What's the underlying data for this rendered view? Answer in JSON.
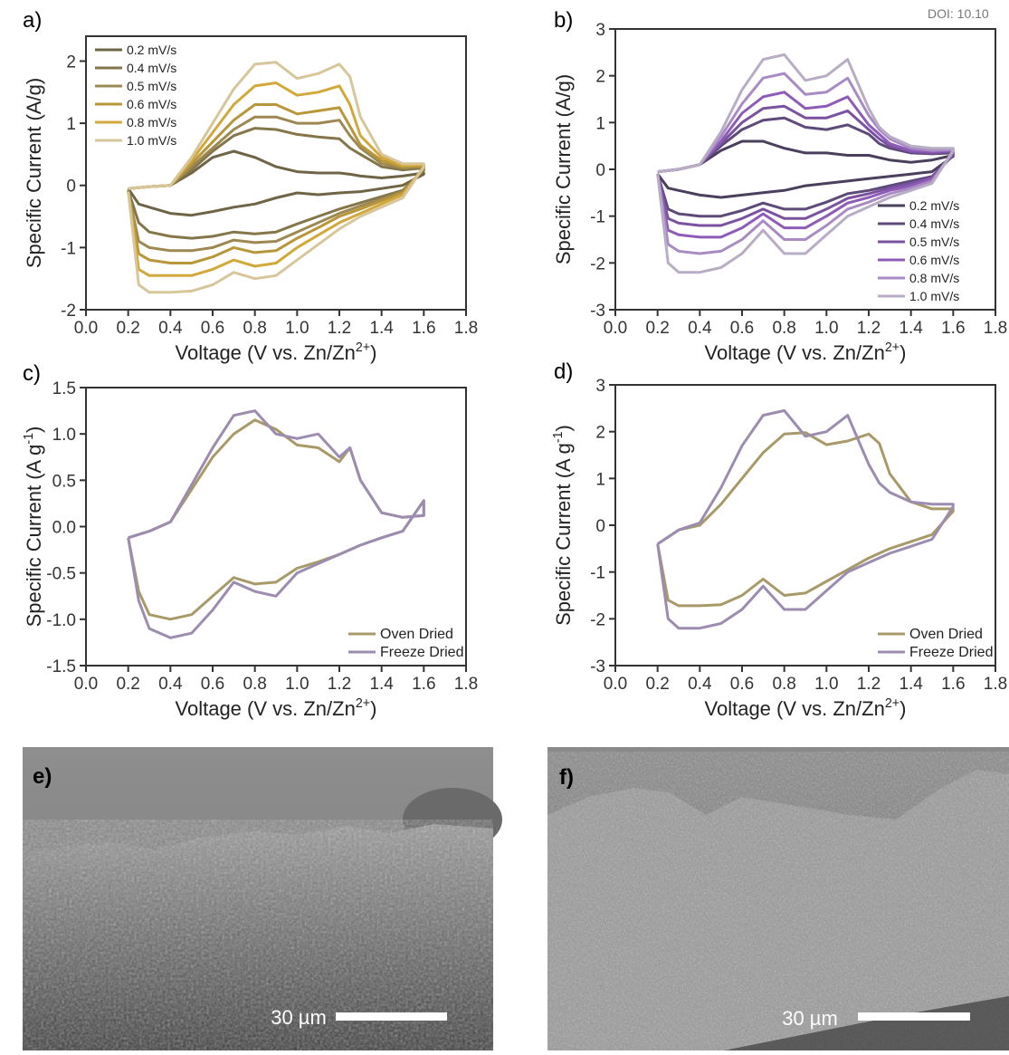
{
  "doi": "DOI: 10.10",
  "chart_data": [
    {
      "type": "line",
      "panel": "a)",
      "ylabel": {
        "text": "Specific Current (A/g)"
      },
      "xlabel": {
        "text": "Voltage (V vs. Zn/Zn",
        "sup": "2+",
        "end": ")"
      },
      "xlim": [
        0,
        1.8
      ],
      "xticks": [
        {
          "value": 0,
          "label": "0.0"
        },
        0.2,
        0.4,
        0.6,
        0.8,
        {
          "value": 1,
          "label": "1.0"
        },
        1.2,
        1.4,
        1.6,
        1.8
      ],
      "ylim": [
        -2,
        2.4
      ],
      "yticks": [
        -2,
        -1,
        0,
        1,
        2
      ],
      "legend": "upper left",
      "x": [
        0.2,
        0.3,
        0.4,
        0.5,
        0.6,
        0.7,
        0.8,
        0.9,
        1.0,
        1.1,
        1.2,
        1.25,
        1.3,
        1.4,
        1.5,
        1.6,
        1.6,
        1.5,
        1.4,
        1.3,
        1.2,
        1.1,
        1.0,
        0.9,
        0.8,
        0.7,
        0.6,
        0.5,
        0.4,
        0.3,
        0.25,
        0.2
      ],
      "series": [
        {
          "name": "0.2 mV/s",
          "color": "#6f6445",
          "values": [
            -0.05,
            -0.02,
            0.0,
            0.2,
            0.45,
            0.55,
            0.45,
            0.3,
            0.22,
            0.2,
            0.2,
            0.18,
            0.15,
            0.12,
            0.15,
            0.2,
            0.18,
            0.0,
            -0.05,
            -0.1,
            -0.12,
            -0.15,
            -0.12,
            -0.2,
            -0.3,
            -0.35,
            -0.42,
            -0.48,
            -0.45,
            -0.35,
            -0.3,
            -0.05
          ]
        },
        {
          "name": "0.4 mV/s",
          "color": "#85764a",
          "values": [
            -0.05,
            -0.02,
            0.0,
            0.25,
            0.55,
            0.8,
            0.92,
            0.9,
            0.82,
            0.78,
            0.75,
            0.6,
            0.5,
            0.3,
            0.25,
            0.28,
            0.24,
            -0.08,
            -0.18,
            -0.28,
            -0.38,
            -0.5,
            -0.62,
            -0.75,
            -0.78,
            -0.75,
            -0.82,
            -0.85,
            -0.82,
            -0.75,
            -0.6,
            -0.08
          ]
        },
        {
          "name": "0.5 mV/s",
          "color": "#9c8850",
          "values": [
            -0.05,
            -0.02,
            0.0,
            0.3,
            0.6,
            0.9,
            1.1,
            1.1,
            1.0,
            1.0,
            1.05,
            0.8,
            0.6,
            0.35,
            0.28,
            0.3,
            0.26,
            -0.1,
            -0.22,
            -0.33,
            -0.45,
            -0.6,
            -0.75,
            -0.9,
            -0.92,
            -0.88,
            -1.0,
            -1.05,
            -1.05,
            -1.0,
            -0.9,
            -0.1
          ]
        },
        {
          "name": "0.6 mV/s",
          "color": "#b8963a",
          "values": [
            -0.05,
            -0.02,
            0.0,
            0.35,
            0.7,
            1.05,
            1.3,
            1.3,
            1.15,
            1.2,
            1.25,
            0.95,
            0.65,
            0.4,
            0.3,
            0.32,
            0.28,
            -0.12,
            -0.25,
            -0.38,
            -0.5,
            -0.68,
            -0.85,
            -1.05,
            -1.08,
            -1.0,
            -1.15,
            -1.25,
            -1.25,
            -1.2,
            -1.1,
            -0.1
          ]
        },
        {
          "name": "0.8 mV/s",
          "color": "#d2a83a",
          "values": [
            -0.05,
            -0.02,
            0.0,
            0.4,
            0.85,
            1.3,
            1.6,
            1.65,
            1.45,
            1.5,
            1.6,
            1.3,
            0.8,
            0.45,
            0.32,
            0.33,
            0.3,
            -0.15,
            -0.3,
            -0.45,
            -0.6,
            -0.8,
            -1.0,
            -1.25,
            -1.3,
            -1.2,
            -1.35,
            -1.45,
            -1.45,
            -1.45,
            -1.35,
            -0.1
          ]
        },
        {
          "name": "1.0 mV/s",
          "color": "#d6c69a",
          "values": [
            -0.05,
            -0.02,
            0.0,
            0.45,
            1.0,
            1.55,
            1.95,
            1.98,
            1.72,
            1.8,
            1.95,
            1.75,
            1.1,
            0.5,
            0.35,
            0.35,
            0.3,
            -0.2,
            -0.35,
            -0.5,
            -0.7,
            -0.95,
            -1.2,
            -1.45,
            -1.5,
            -1.4,
            -1.6,
            -1.7,
            -1.72,
            -1.72,
            -1.6,
            -0.1
          ]
        }
      ]
    },
    {
      "type": "line",
      "panel": "b)",
      "ylabel": {
        "text": "Specific Current (A/g)"
      },
      "xlabel": {
        "text": "Voltage (V vs. Zn/Zn",
        "sup": "2+",
        "end": ")"
      },
      "xlim": [
        0,
        1.8
      ],
      "xticks": [
        {
          "value": 0,
          "label": "0.0"
        },
        0.2,
        0.4,
        0.6,
        0.8,
        {
          "value": 1,
          "label": "1.0"
        },
        1.2,
        1.4,
        1.6,
        1.8
      ],
      "ylim": [
        -3,
        3
      ],
      "yticks": [
        -3,
        -2,
        -1,
        0,
        1,
        2,
        3
      ],
      "legend": "lower right",
      "x": [
        0.2,
        0.3,
        0.4,
        0.5,
        0.6,
        0.7,
        0.8,
        0.9,
        1.0,
        1.1,
        1.2,
        1.25,
        1.3,
        1.4,
        1.5,
        1.6,
        1.6,
        1.5,
        1.4,
        1.3,
        1.2,
        1.1,
        1.0,
        0.9,
        0.8,
        0.7,
        0.6,
        0.5,
        0.4,
        0.3,
        0.25,
        0.2
      ],
      "series": [
        {
          "name": "0.2 mV/s",
          "color": "#4a3f5c",
          "values": [
            -0.05,
            0.0,
            0.1,
            0.4,
            0.6,
            0.6,
            0.45,
            0.35,
            0.35,
            0.3,
            0.3,
            0.25,
            0.2,
            0.15,
            0.2,
            0.3,
            0.28,
            -0.05,
            -0.1,
            -0.15,
            -0.2,
            -0.25,
            -0.3,
            -0.35,
            -0.45,
            -0.5,
            -0.55,
            -0.6,
            -0.55,
            -0.45,
            -0.4,
            -0.1
          ]
        },
        {
          "name": "0.4 mV/s",
          "color": "#5e4a7a",
          "values": [
            -0.05,
            0.0,
            0.1,
            0.5,
            0.85,
            1.05,
            1.1,
            0.9,
            0.85,
            0.95,
            0.75,
            0.55,
            0.45,
            0.35,
            0.33,
            0.35,
            0.3,
            -0.15,
            -0.25,
            -0.35,
            -0.45,
            -0.52,
            -0.7,
            -0.85,
            -0.85,
            -0.72,
            -0.88,
            -1.0,
            -1.0,
            -0.95,
            -0.85,
            -0.1
          ]
        },
        {
          "name": "0.5 mV/s",
          "color": "#7a52a0",
          "values": [
            -0.05,
            0.0,
            0.1,
            0.55,
            1.0,
            1.3,
            1.35,
            1.1,
            1.1,
            1.25,
            0.85,
            0.65,
            0.5,
            0.38,
            0.35,
            0.38,
            0.32,
            -0.18,
            -0.3,
            -0.4,
            -0.52,
            -0.62,
            -0.85,
            -1.05,
            -1.05,
            -0.85,
            -1.05,
            -1.2,
            -1.2,
            -1.15,
            -1.05,
            -0.1
          ]
        },
        {
          "name": "0.6 mV/s",
          "color": "#8f5bb8",
          "values": [
            -0.05,
            0.0,
            0.1,
            0.6,
            1.2,
            1.55,
            1.65,
            1.3,
            1.35,
            1.55,
            0.95,
            0.75,
            0.55,
            0.4,
            0.38,
            0.4,
            0.35,
            -0.2,
            -0.35,
            -0.45,
            -0.6,
            -0.72,
            -1.0,
            -1.25,
            -1.25,
            -0.95,
            -1.25,
            -1.45,
            -1.45,
            -1.4,
            -1.3,
            -0.1
          ]
        },
        {
          "name": "0.8 mV/s",
          "color": "#a98bc4",
          "values": [
            -0.05,
            0.0,
            0.1,
            0.7,
            1.4,
            1.95,
            2.05,
            1.6,
            1.65,
            1.95,
            1.15,
            0.85,
            0.65,
            0.45,
            0.4,
            0.42,
            0.38,
            -0.25,
            -0.4,
            -0.52,
            -0.7,
            -0.85,
            -1.2,
            -1.5,
            -1.5,
            -1.1,
            -1.5,
            -1.75,
            -1.8,
            -1.75,
            -1.6,
            -0.1
          ]
        },
        {
          "name": "1.0 mV/s",
          "color": "#b8adc4",
          "values": [
            -0.05,
            0.0,
            0.1,
            0.8,
            1.7,
            2.35,
            2.45,
            1.9,
            2.0,
            2.35,
            1.3,
            0.9,
            0.7,
            0.5,
            0.45,
            0.45,
            0.4,
            -0.3,
            -0.45,
            -0.6,
            -0.8,
            -1.0,
            -1.4,
            -1.8,
            -1.8,
            -1.3,
            -1.8,
            -2.1,
            -2.2,
            -2.2,
            -2.0,
            -0.1
          ]
        }
      ]
    },
    {
      "type": "line",
      "panel": "c)",
      "ylabel": {
        "text": "Specific Current (A g",
        "sup": "-1",
        "end": ")"
      },
      "xlabel": {
        "text": "Voltage (V vs. Zn/Zn",
        "sup": "2+",
        "end": ")"
      },
      "xlim": [
        0,
        1.8
      ],
      "xticks": [
        {
          "value": 0,
          "label": "0.0"
        },
        0.2,
        0.4,
        0.6,
        0.8,
        {
          "value": 1,
          "label": "1.0"
        },
        1.2,
        1.4,
        1.6,
        1.8
      ],
      "ylim": [
        -1.5,
        1.5
      ],
      "yticks": [
        {
          "value": -1.5,
          "label": "-1.5"
        },
        {
          "value": -1,
          "label": "-1.0"
        },
        -0.5,
        {
          "value": 0,
          "label": "0.0"
        },
        0.5,
        {
          "value": 1,
          "label": "1.0"
        },
        1.5
      ],
      "legend": "lower right",
      "x": [
        0.2,
        0.3,
        0.4,
        0.5,
        0.6,
        0.7,
        0.8,
        0.9,
        1.0,
        1.1,
        1.2,
        1.25,
        1.3,
        1.4,
        1.5,
        1.6,
        1.6,
        1.5,
        1.4,
        1.3,
        1.2,
        1.1,
        1.0,
        0.9,
        0.8,
        0.7,
        0.6,
        0.5,
        0.4,
        0.3,
        0.25,
        0.2
      ],
      "series": [
        {
          "name": "Oven Dried",
          "color": "#a89a68",
          "values": [
            -0.12,
            -0.05,
            0.05,
            0.4,
            0.75,
            1.0,
            1.15,
            1.05,
            0.88,
            0.85,
            0.7,
            0.85,
            0.5,
            0.15,
            0.1,
            0.12,
            0.28,
            -0.05,
            -0.12,
            -0.2,
            -0.3,
            -0.38,
            -0.45,
            -0.6,
            -0.62,
            -0.55,
            -0.75,
            -0.95,
            -1.0,
            -0.95,
            -0.7,
            -0.12
          ]
        },
        {
          "name": "Freeze Dried",
          "color": "#9c8cb0",
          "values": [
            -0.12,
            -0.05,
            0.05,
            0.45,
            0.85,
            1.2,
            1.25,
            1.0,
            0.95,
            1.0,
            0.75,
            0.85,
            0.5,
            0.15,
            0.1,
            0.12,
            0.28,
            -0.05,
            -0.12,
            -0.2,
            -0.3,
            -0.4,
            -0.5,
            -0.75,
            -0.7,
            -0.6,
            -0.9,
            -1.15,
            -1.2,
            -1.1,
            -0.8,
            -0.12
          ]
        }
      ]
    },
    {
      "type": "line",
      "panel": "d)",
      "ylabel": {
        "text": "Specific Current (A g",
        "sup": "-1",
        "end": ")"
      },
      "xlabel": {
        "text": "Voltage (V vs. Zn/Zn",
        "sup": "2+",
        "end": ")"
      },
      "xlim": [
        0,
        1.8
      ],
      "xticks": [
        {
          "value": 0,
          "label": "0.0"
        },
        0.2,
        0.4,
        0.6,
        0.8,
        {
          "value": 1,
          "label": "1.0"
        },
        1.2,
        1.4,
        1.6,
        1.8
      ],
      "ylim": [
        -3,
        3
      ],
      "yticks": [
        -3,
        -2,
        -1,
        0,
        1,
        2,
        3
      ],
      "legend": "lower right",
      "x": [
        0.2,
        0.3,
        0.4,
        0.5,
        0.6,
        0.7,
        0.8,
        0.9,
        1.0,
        1.1,
        1.2,
        1.25,
        1.3,
        1.4,
        1.5,
        1.6,
        1.6,
        1.5,
        1.4,
        1.3,
        1.2,
        1.1,
        1.0,
        0.9,
        0.8,
        0.7,
        0.6,
        0.5,
        0.4,
        0.3,
        0.25,
        0.2
      ],
      "series": [
        {
          "name": "Oven Dried",
          "color": "#a89a68",
          "values": [
            -0.4,
            -0.1,
            0.0,
            0.45,
            1.0,
            1.55,
            1.95,
            1.98,
            1.72,
            1.8,
            1.95,
            1.75,
            1.1,
            0.5,
            0.35,
            0.35,
            0.3,
            -0.2,
            -0.35,
            -0.5,
            -0.7,
            -0.95,
            -1.2,
            -1.45,
            -1.5,
            -1.15,
            -1.5,
            -1.7,
            -1.72,
            -1.72,
            -1.6,
            -0.4
          ]
        },
        {
          "name": "Freeze Dried",
          "color": "#9c8cb0",
          "values": [
            -0.4,
            -0.1,
            0.05,
            0.8,
            1.7,
            2.35,
            2.45,
            1.9,
            2.0,
            2.35,
            1.3,
            0.9,
            0.7,
            0.5,
            0.45,
            0.45,
            0.4,
            -0.3,
            -0.45,
            -0.6,
            -0.8,
            -1.0,
            -1.4,
            -1.8,
            -1.8,
            -1.3,
            -1.8,
            -2.1,
            -2.2,
            -2.2,
            -2.0,
            -0.4
          ]
        }
      ]
    }
  ],
  "images": [
    {
      "label": "e)",
      "scale_bar": "30 µm"
    },
    {
      "label": "f)",
      "scale_bar": "30 µm"
    }
  ]
}
